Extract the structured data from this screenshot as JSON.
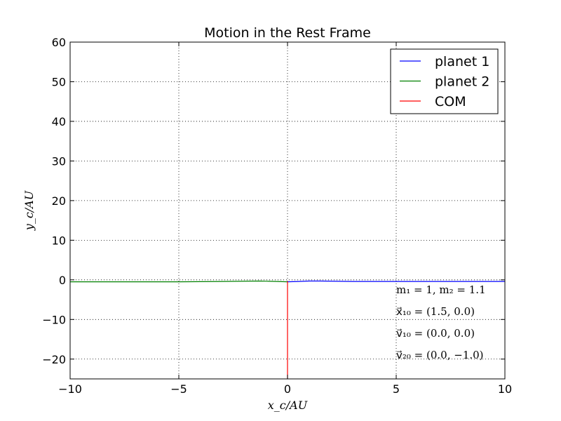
{
  "chart_data": {
    "type": "line",
    "title": "Motion in the Rest Frame",
    "xlabel": "x_c/AU",
    "ylabel": "y_c/AU",
    "xlim": [
      -10,
      10
    ],
    "ylim": [
      -25,
      60
    ],
    "x_ticks": [
      -10,
      -5,
      0,
      5,
      10
    ],
    "x_tick_labels": [
      "−10",
      "−5",
      "0",
      "5",
      "10"
    ],
    "y_ticks": [
      -20,
      -10,
      0,
      10,
      20,
      30,
      40,
      50,
      60
    ],
    "y_tick_labels": [
      "−20",
      "−10",
      "0",
      "10",
      "20",
      "30",
      "40",
      "50",
      "60"
    ],
    "grid": true,
    "legend_position": "top-right",
    "series": [
      {
        "name": "planet 1",
        "color": "#0000ff",
        "x": [
          0,
          0.5,
          1.0,
          1.5,
          3,
          5,
          7,
          9,
          10
        ],
        "y": [
          -0.5,
          -0.4,
          -0.3,
          -0.3,
          -0.4,
          -0.4,
          -0.4,
          -0.4,
          -0.4
        ]
      },
      {
        "name": "planet 2",
        "color": "#008000",
        "x": [
          0,
          -0.5,
          -1.3,
          -3,
          -5,
          -7,
          -9,
          -10
        ],
        "y": [
          -0.5,
          -0.4,
          -0.3,
          -0.4,
          -0.5,
          -0.5,
          -0.5,
          -0.5
        ]
      },
      {
        "name": "COM",
        "color": "#ff0000",
        "x": [
          0,
          0
        ],
        "y": [
          -0.4,
          -25
        ]
      }
    ],
    "annotations": [
      "m₁ = 1, m₂ = 1.1",
      "x⃗₁₀ = (1.5, 0.0)",
      "v⃗₁₀ = (0.0, 0.0)",
      "v⃗₂₀ = (0.0, −1.0)"
    ]
  }
}
